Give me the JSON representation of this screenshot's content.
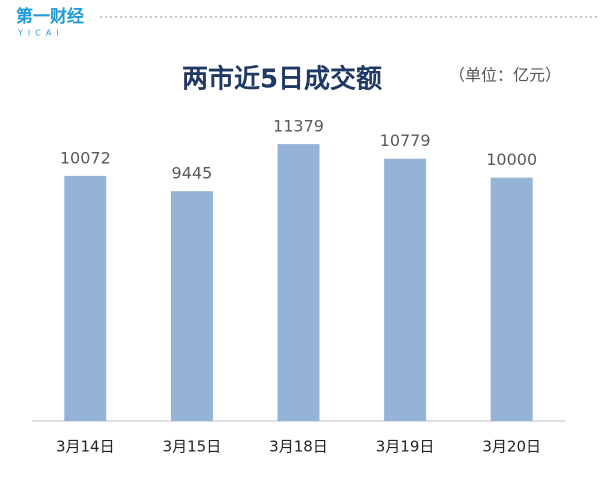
{
  "brand": "第一财经",
  "brand_sub": "YICAI",
  "chart_data": {
    "type": "bar",
    "title": "两市近5日成交额",
    "subtitle": "（单位：亿元）",
    "categories": [
      "3月14日",
      "3月15日",
      "3月18日",
      "3月19日",
      "3月20日"
    ],
    "values": [
      10072,
      9445,
      11379,
      10779,
      10000
    ],
    "color": "#95b3d7",
    "ylim": [
      0,
      12000
    ],
    "grid": false
  }
}
